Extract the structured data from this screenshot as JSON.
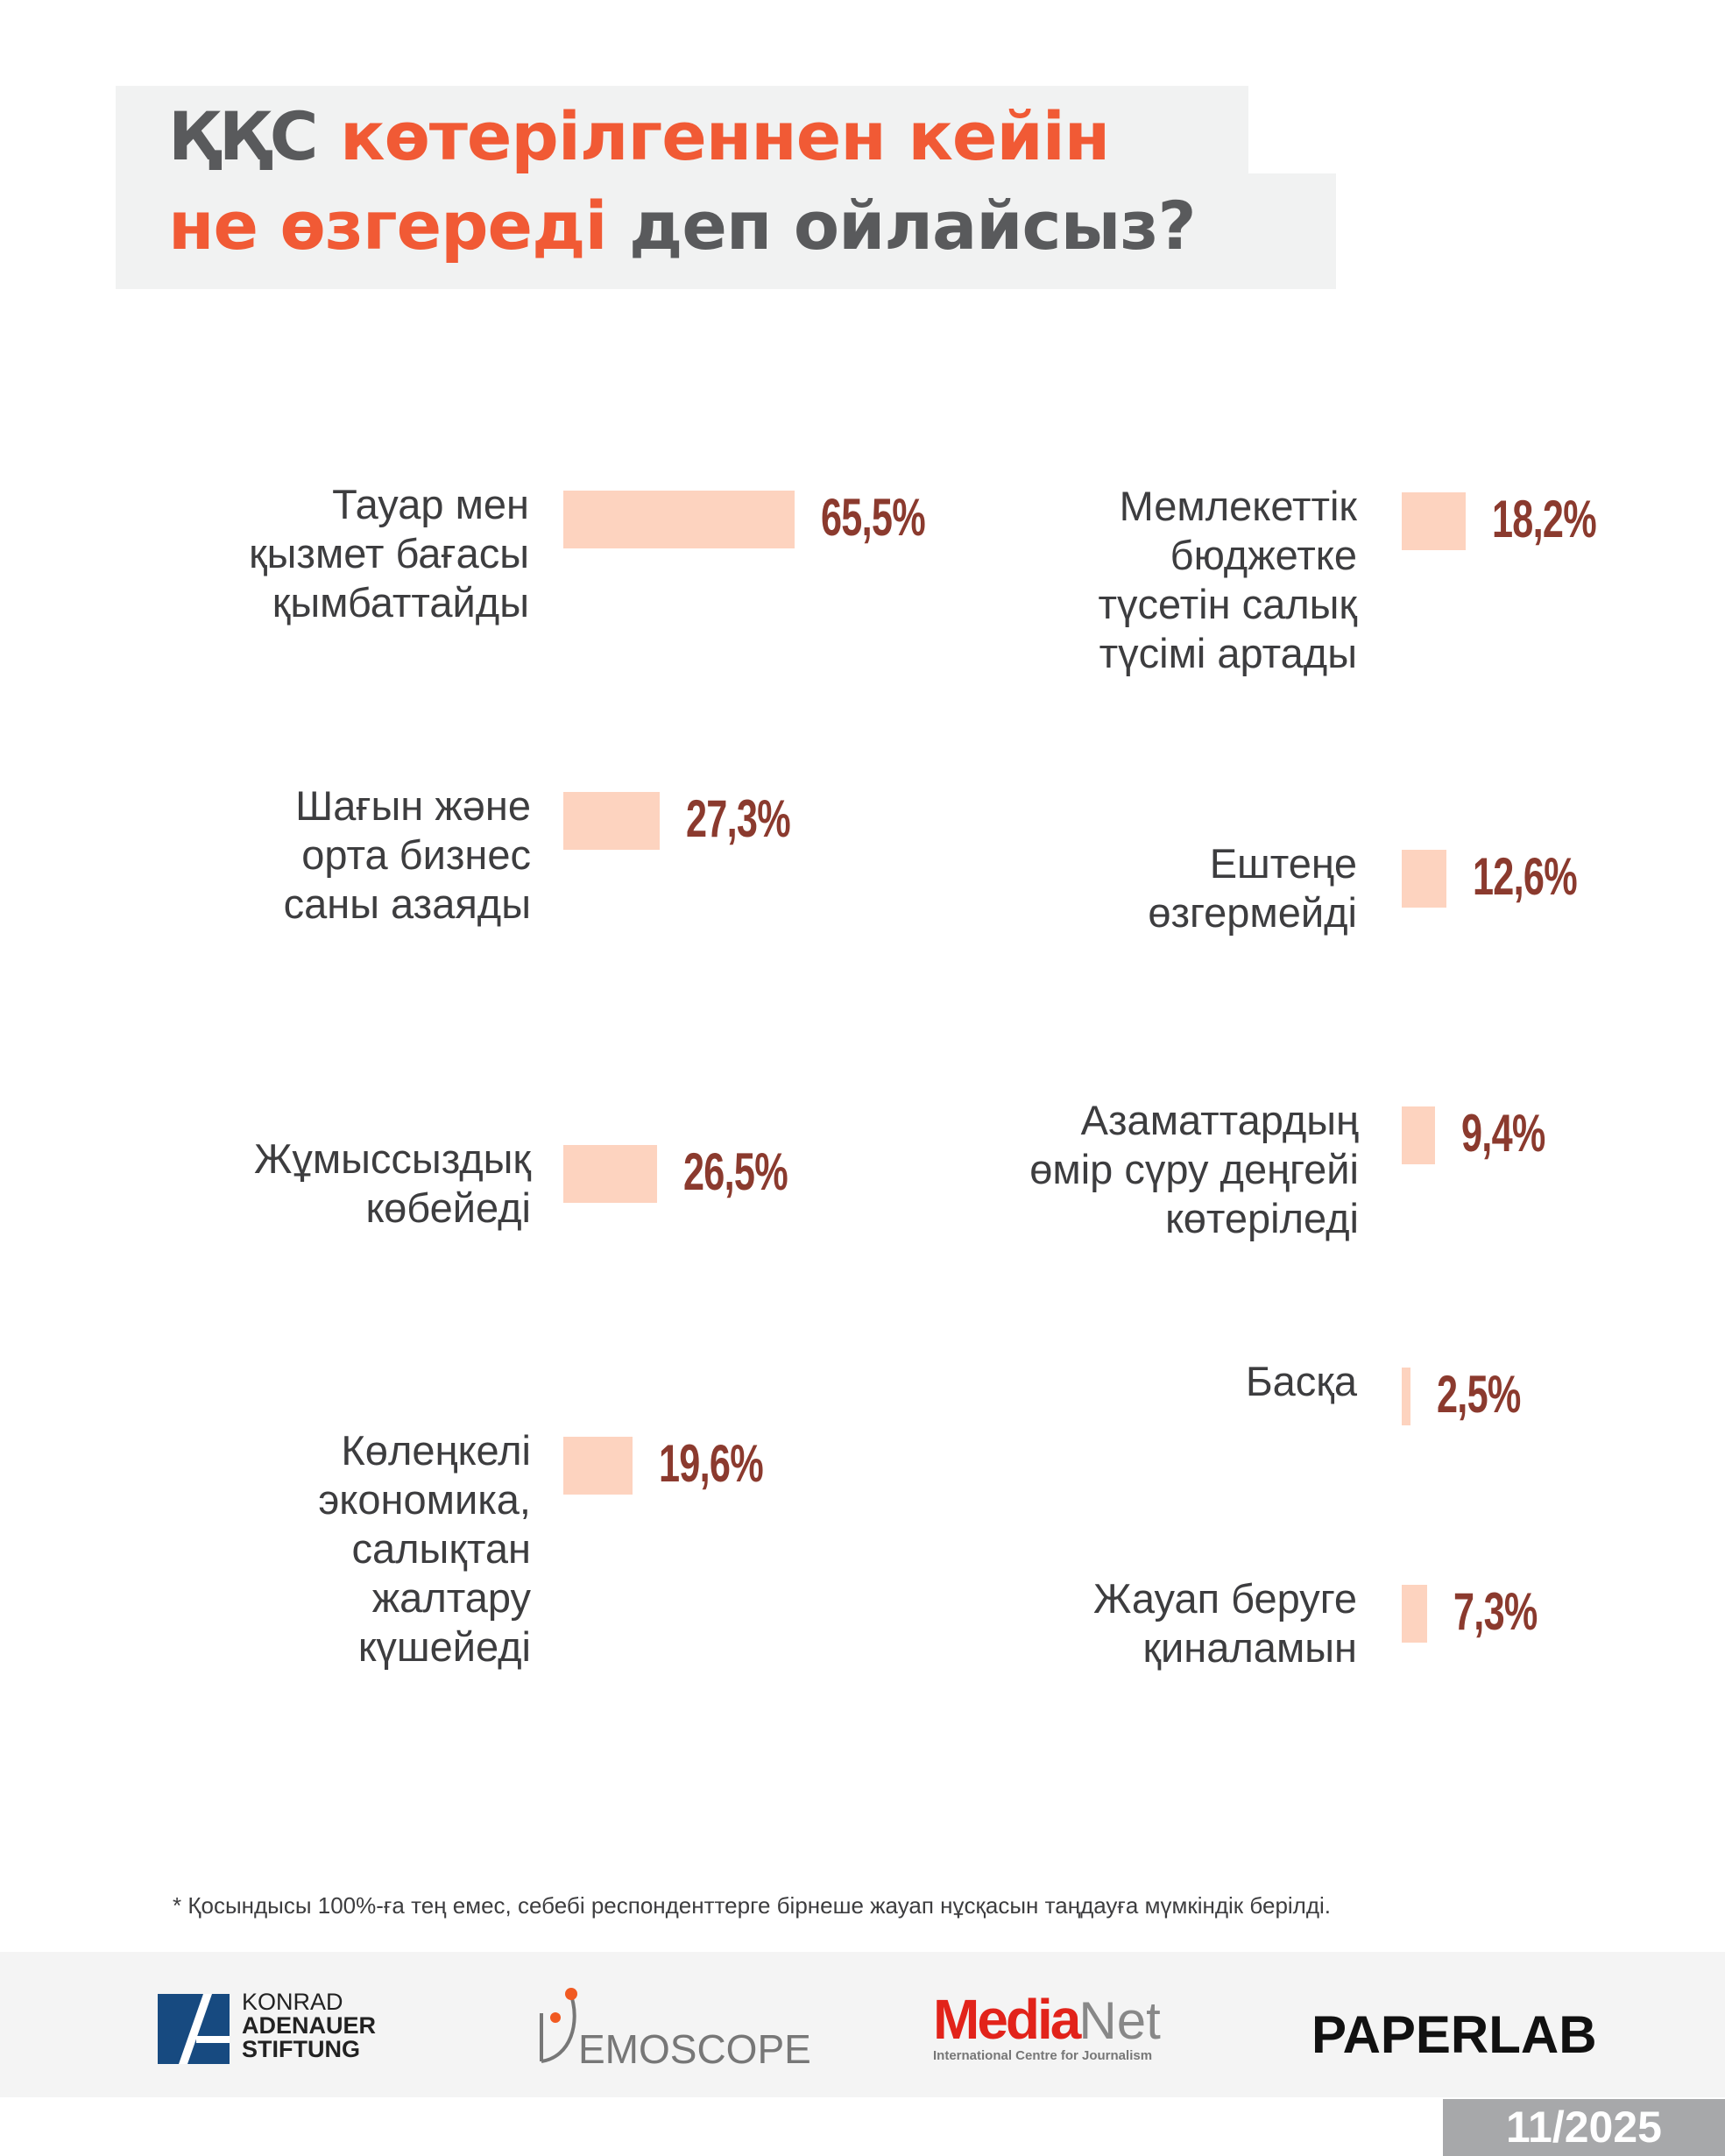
{
  "title": {
    "line1_gray": "ҚҚС",
    "line1_orange": "көтерілгеннен кейін",
    "line2_orange": "не өзгереді",
    "line2_gray": "деп ойлайсыз?"
  },
  "colors": {
    "bar": "#fdd3bf",
    "value": "#8b3a2e",
    "accent": "#f15a35",
    "title_gray": "#595a5c"
  },
  "chart_data": {
    "type": "bar",
    "title": "ҚҚС көтерілгеннен кейін не өзгереді деп ойлайсыз?",
    "unit": "%",
    "xlim": [
      0,
      100
    ],
    "categories": [
      "Тауар мен\nқызмет бағасы\nқымбаттайды",
      "Шағын және\nорта бизнес\nсаны азаяды",
      "Жұмыссыздық\nкөбейеді",
      "Көлеңкелі\nэкономика,\nсалықтан\nжалтару\nкүшейеді",
      "Мемлекеттік\nбюджетке\nтүсетін салық\nтүсімі артады",
      "Ештеңе\nөзгермейді",
      "Азаматтардың\nөмір сүру деңгейі\nкөтеріледі",
      "Басқа",
      "Жауап беруге\nқиналамын"
    ],
    "values": [
      65.5,
      27.3,
      26.5,
      19.6,
      18.2,
      12.6,
      9.4,
      2.5,
      7.3
    ],
    "value_labels": [
      "65,5%",
      "27,3%",
      "26,5%",
      "19,6%",
      "18,2%",
      "12,6%",
      "9,4%",
      "2,5%",
      "7,3%"
    ]
  },
  "footnote": "* Қосындысы 100%-ға тең емес, себебі респонденттерге бірнеше жауап нұсқасын таңдауға мүмкіндік берілді.",
  "logos": {
    "kas": [
      "KONRAD",
      "ADENAUER",
      "STIFTUNG"
    ],
    "demoscope": "EMOSCOPE",
    "medianet_a": "Media",
    "medianet_b": "Net",
    "medianet_sub": "International Centre for Journalism",
    "paperlab": "PAPERLAB"
  },
  "date": "11/2025"
}
